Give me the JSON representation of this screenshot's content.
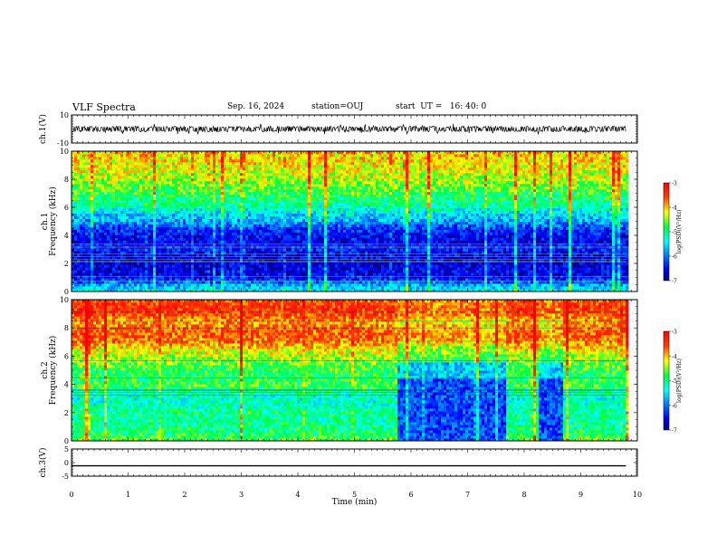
{
  "header": {
    "title": "VLF Spectra",
    "date": "Sep. 16, 2024",
    "station": "station=OUJ",
    "start": "start  UT =   16: 40: 0"
  },
  "chart_data": [
    {
      "type": "line",
      "panel": "waveform-ch1",
      "ylabel": "ch.1(V)",
      "ylim": [
        -10,
        10
      ],
      "yticks": [
        "10",
        "-10"
      ],
      "xlim": [
        0,
        10
      ],
      "x": [
        0,
        9.8
      ],
      "y_center": 0,
      "y_amplitude": 2,
      "color": "#000000"
    },
    {
      "type": "heatmap",
      "panel": "spectrogram-ch1",
      "ylabel": "ch.1",
      "ylabel2": "Frequency (kHz)",
      "ylim": [
        0,
        10
      ],
      "yticks": [
        "0",
        "2",
        "4",
        "6",
        "8",
        "10"
      ],
      "xlim": [
        0,
        10
      ],
      "data_xmax": 9.8,
      "colorbar": {
        "label": "log(PSD)(V²/Hz)",
        "range": [
          -7,
          -3
        ],
        "ticks": [
          "-3",
          "-4",
          "-5",
          "-6",
          "-7"
        ]
      },
      "profile_freq_khz": [
        0,
        0.5,
        1,
        1.5,
        2,
        2.5,
        3,
        3.5,
        4,
        4.5,
        5,
        5.5,
        6,
        6.5,
        7,
        7.5,
        8,
        8.5,
        9,
        9.5,
        10
      ],
      "profile_log_psd": [
        -5.4,
        -5.8,
        -6.5,
        -6.6,
        -6.7,
        -6.6,
        -6.4,
        -6.6,
        -6.5,
        -6.3,
        -5.8,
        -5.6,
        -5.2,
        -5.0,
        -4.8,
        -4.6,
        -4.4,
        -4.3,
        -4.2,
        -4.1,
        -4.0
      ]
    },
    {
      "type": "heatmap",
      "panel": "spectrogram-ch2",
      "ylabel": "ch.2",
      "ylabel2": "Frequency (kHz)",
      "ylim": [
        0,
        10
      ],
      "yticks": [
        "0",
        "2",
        "4",
        "6",
        "8",
        "10"
      ],
      "xlim": [
        0,
        10
      ],
      "data_xmax": 9.8,
      "colorbar": {
        "label": "log(PSD)(V²/Hz)",
        "range": [
          -7,
          -3
        ],
        "ticks": [
          "-3",
          "-4",
          "-5",
          "-6",
          "-7"
        ]
      },
      "profile_freq_khz": [
        0,
        0.5,
        1,
        1.5,
        2,
        2.5,
        3,
        3.5,
        4,
        4.5,
        5,
        5.5,
        6,
        6.5,
        7,
        7.5,
        8,
        8.5,
        9,
        9.5,
        10
      ],
      "profile_log_psd": [
        -4.6,
        -4.9,
        -5.0,
        -5.1,
        -5.0,
        -5.2,
        -5.3,
        -5.1,
        -4.7,
        -4.9,
        -4.8,
        -4.6,
        -4.4,
        -4.2,
        -3.8,
        -3.6,
        -3.7,
        -3.9,
        -3.5,
        -3.4,
        -3.6
      ],
      "quiet_intervals_min": [
        [
          5.75,
          7.65
        ],
        [
          8.25,
          8.65
        ]
      ],
      "quiet_band_khz": [
        0,
        5.6
      ]
    },
    {
      "type": "line",
      "panel": "waveform-ch3",
      "ylabel": "ch.3(V)",
      "ylim": [
        -5,
        5
      ],
      "yticks": [
        "5",
        "0",
        "-5"
      ],
      "xlim": [
        0,
        10
      ],
      "x": [
        0,
        9.8
      ],
      "y": [
        -1.2,
        -1.2
      ],
      "xlabel": "Time (min)",
      "xticks": [
        "0",
        "1",
        "2",
        "3",
        "4",
        "5",
        "6",
        "7",
        "8",
        "9",
        "10"
      ],
      "color": "#000000"
    }
  ]
}
